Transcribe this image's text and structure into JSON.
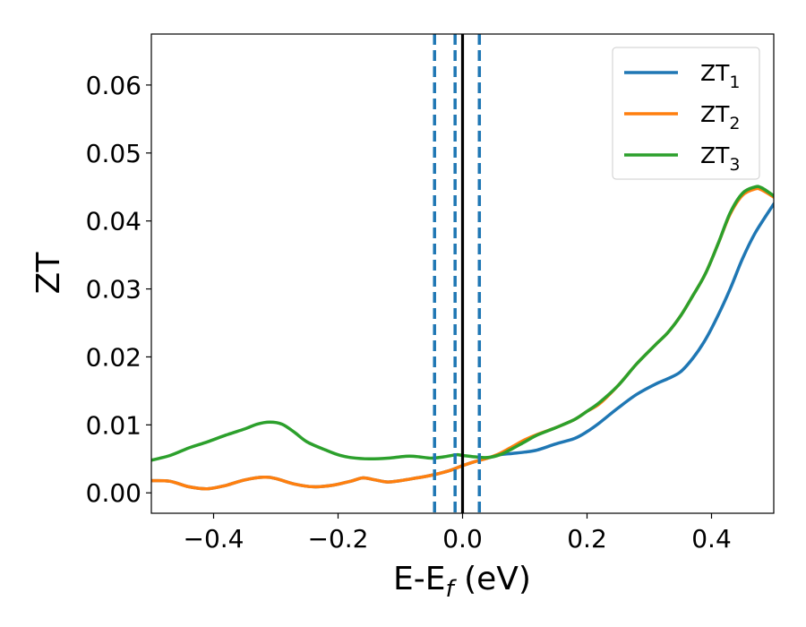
{
  "chart_data": {
    "type": "line",
    "xlabel": "E-E",
    "xlabel_sub": "f",
    "xlabel_unit": " (eV)",
    "ylabel": "ZT",
    "xlim": [
      -0.5,
      0.5
    ],
    "ylim": [
      -0.003,
      0.0675
    ],
    "xticks": [
      -0.4,
      -0.2,
      0.0,
      0.2,
      0.4
    ],
    "xtick_labels": [
      "−0.4",
      "−0.2",
      "0.0",
      "0.2",
      "0.4"
    ],
    "yticks": [
      0.0,
      0.01,
      0.02,
      0.03,
      0.04,
      0.05,
      0.06
    ],
    "ytick_labels": [
      "0.00",
      "0.01",
      "0.02",
      "0.03",
      "0.04",
      "0.05",
      "0.06"
    ],
    "grid": false,
    "legend_position": "top-right",
    "vlines": [
      {
        "x": 0.0,
        "style": "solid",
        "color": "#000000"
      },
      {
        "x": -0.045,
        "style": "dashed",
        "color": "#1f77b4"
      },
      {
        "x": -0.012,
        "style": "dashed",
        "color": "#1f77b4"
      },
      {
        "x": 0.027,
        "style": "dashed",
        "color": "#1f77b4"
      }
    ],
    "series": [
      {
        "name": "ZT",
        "name_sub": "1",
        "color": "#1f77b4",
        "x": [
          -0.5,
          -0.47,
          -0.44,
          -0.41,
          -0.38,
          -0.35,
          -0.32,
          -0.3,
          -0.27,
          -0.24,
          -0.21,
          -0.18,
          -0.16,
          -0.14,
          -0.12,
          -0.1,
          -0.08,
          -0.06,
          -0.04,
          -0.02,
          0.0,
          0.02,
          0.04,
          0.06,
          0.08,
          0.1,
          0.12,
          0.15,
          0.18,
          0.2,
          0.22,
          0.25,
          0.28,
          0.31,
          0.33,
          0.35,
          0.37,
          0.39,
          0.41,
          0.43,
          0.45,
          0.47,
          0.5
        ],
        "y": [
          0.0018,
          0.0017,
          0.0009,
          0.0006,
          0.0011,
          0.0019,
          0.0023,
          0.0021,
          0.0013,
          0.0009,
          0.0011,
          0.0017,
          0.0022,
          0.0019,
          0.0016,
          0.0018,
          0.0021,
          0.0024,
          0.0028,
          0.0033,
          0.004,
          0.0046,
          0.0051,
          0.0056,
          0.0058,
          0.006,
          0.0063,
          0.0072,
          0.008,
          0.009,
          0.0103,
          0.0125,
          0.0145,
          0.016,
          0.0168,
          0.0178,
          0.0198,
          0.0225,
          0.026,
          0.03,
          0.0345,
          0.0382,
          0.0425
        ]
      },
      {
        "name": "ZT",
        "name_sub": "2",
        "color": "#ff7f0e",
        "x": [
          -0.5,
          -0.47,
          -0.44,
          -0.41,
          -0.38,
          -0.35,
          -0.32,
          -0.3,
          -0.27,
          -0.24,
          -0.21,
          -0.18,
          -0.16,
          -0.14,
          -0.12,
          -0.1,
          -0.08,
          -0.06,
          -0.04,
          -0.02,
          0.0,
          0.02,
          0.04,
          0.06,
          0.08,
          0.1,
          0.12,
          0.15,
          0.18,
          0.2,
          0.22,
          0.25,
          0.28,
          0.31,
          0.33,
          0.35,
          0.37,
          0.39,
          0.41,
          0.43,
          0.45,
          0.47,
          0.48,
          0.5
        ],
        "y": [
          0.0018,
          0.0017,
          0.0009,
          0.0006,
          0.0011,
          0.0019,
          0.0023,
          0.0021,
          0.0013,
          0.0009,
          0.0011,
          0.0017,
          0.0022,
          0.0019,
          0.0016,
          0.0018,
          0.0021,
          0.0024,
          0.0028,
          0.0033,
          0.004,
          0.0046,
          0.0051,
          0.0058,
          0.0068,
          0.0078,
          0.0086,
          0.0096,
          0.0108,
          0.012,
          0.0131,
          0.0158,
          0.019,
          0.0218,
          0.0236,
          0.026,
          0.029,
          0.0322,
          0.0365,
          0.041,
          0.0438,
          0.0447,
          0.0446,
          0.0435
        ]
      },
      {
        "name": "ZT",
        "name_sub": "3",
        "color": "#2ca02c",
        "x": [
          -0.5,
          -0.47,
          -0.44,
          -0.41,
          -0.38,
          -0.35,
          -0.33,
          -0.31,
          -0.29,
          -0.27,
          -0.25,
          -0.22,
          -0.2,
          -0.18,
          -0.15,
          -0.12,
          -0.1,
          -0.085,
          -0.07,
          -0.05,
          -0.03,
          -0.01,
          0.0,
          0.02,
          0.04,
          0.06,
          0.08,
          0.1,
          0.12,
          0.15,
          0.18,
          0.2,
          0.22,
          0.25,
          0.28,
          0.31,
          0.33,
          0.35,
          0.37,
          0.39,
          0.41,
          0.43,
          0.45,
          0.47,
          0.48,
          0.5
        ],
        "y": [
          0.0048,
          0.0055,
          0.0066,
          0.0075,
          0.0085,
          0.0094,
          0.0101,
          0.0104,
          0.0101,
          0.0089,
          0.0075,
          0.0063,
          0.0056,
          0.0052,
          0.005,
          0.0051,
          0.0053,
          0.0054,
          0.0053,
          0.0051,
          0.0053,
          0.0056,
          0.0055,
          0.0053,
          0.0052,
          0.0056,
          0.0065,
          0.0075,
          0.0085,
          0.0096,
          0.0108,
          0.012,
          0.0133,
          0.0158,
          0.019,
          0.0218,
          0.0236,
          0.026,
          0.029,
          0.0322,
          0.0365,
          0.0412,
          0.0441,
          0.045,
          0.0449,
          0.0437
        ]
      }
    ]
  }
}
